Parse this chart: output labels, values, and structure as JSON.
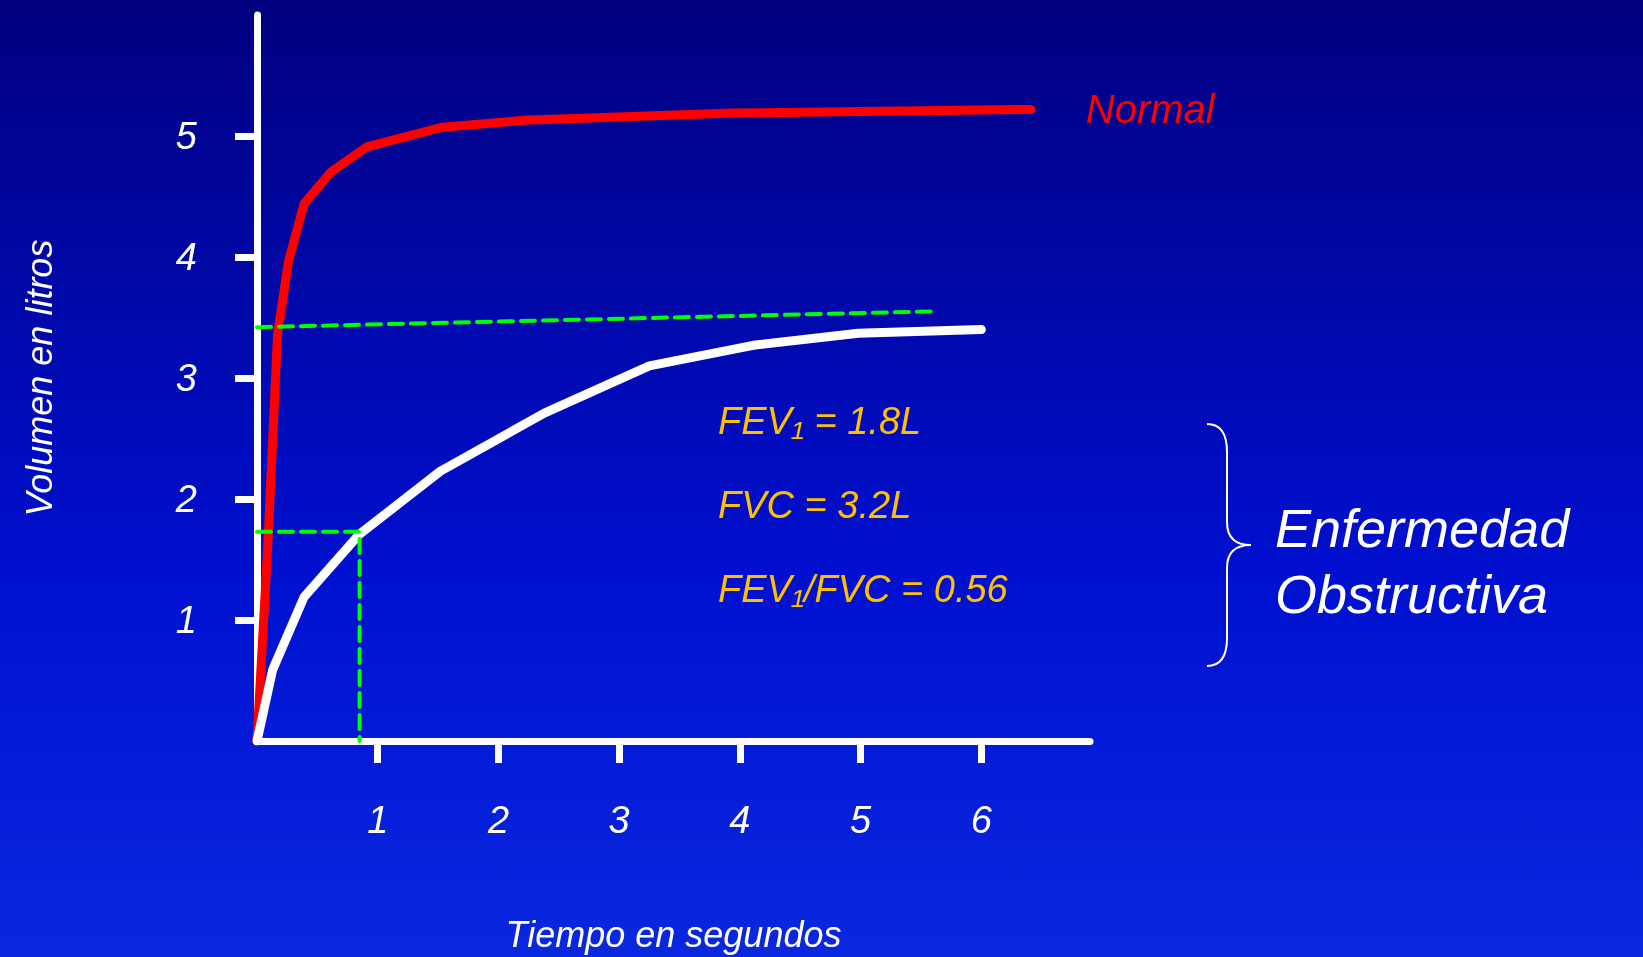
{
  "chart_data": {
    "type": "line",
    "xlabel": "Tiempo en segundos",
    "ylabel": "Volumen en litros",
    "xlim": [
      0,
      6.9
    ],
    "ylim": [
      0,
      6
    ],
    "xticks": [
      1,
      2,
      3,
      4,
      5,
      6
    ],
    "yticks": [
      1,
      2,
      3,
      4,
      5
    ],
    "grid": false,
    "legend": false,
    "marker": "none",
    "series": [
      {
        "name": "Normal",
        "color": "#ff0000",
        "x": [
          0,
          0.09,
          0.17,
          0.26,
          0.39,
          0.61,
          0.91,
          1.52,
          2.21,
          3.94,
          6.41
        ],
        "values": [
          0,
          1.63,
          3.36,
          3.96,
          4.44,
          4.7,
          4.91,
          5.07,
          5.13,
          5.19,
          5.22
        ]
      },
      {
        "color": "#ffffff",
        "x": [
          0,
          0.13,
          0.39,
          0.85,
          1.52,
          2.38,
          3.25,
          4.11,
          4.98,
          6
        ],
        "values": [
          0,
          0.59,
          1.19,
          1.71,
          2.23,
          2.71,
          3.1,
          3.27,
          3.37,
          3.4
        ]
      },
      {
        "color": "#00ff00",
        "line_style": "dashed",
        "x": [
          0,
          5.58
        ],
        "values": [
          3.42,
          3.55
        ]
      },
      {
        "color": "#00ff00",
        "line_style": "dashed",
        "x": [
          0,
          0.85,
          0.85
        ],
        "values": [
          1.73,
          1.73,
          0
        ]
      }
    ],
    "annotations": [
      "FEV₁ = 1.8L",
      "FVC = 3.2L",
      "FEV₁/FVC = 0.56",
      "Enfermedad Obstructiva"
    ]
  }
}
